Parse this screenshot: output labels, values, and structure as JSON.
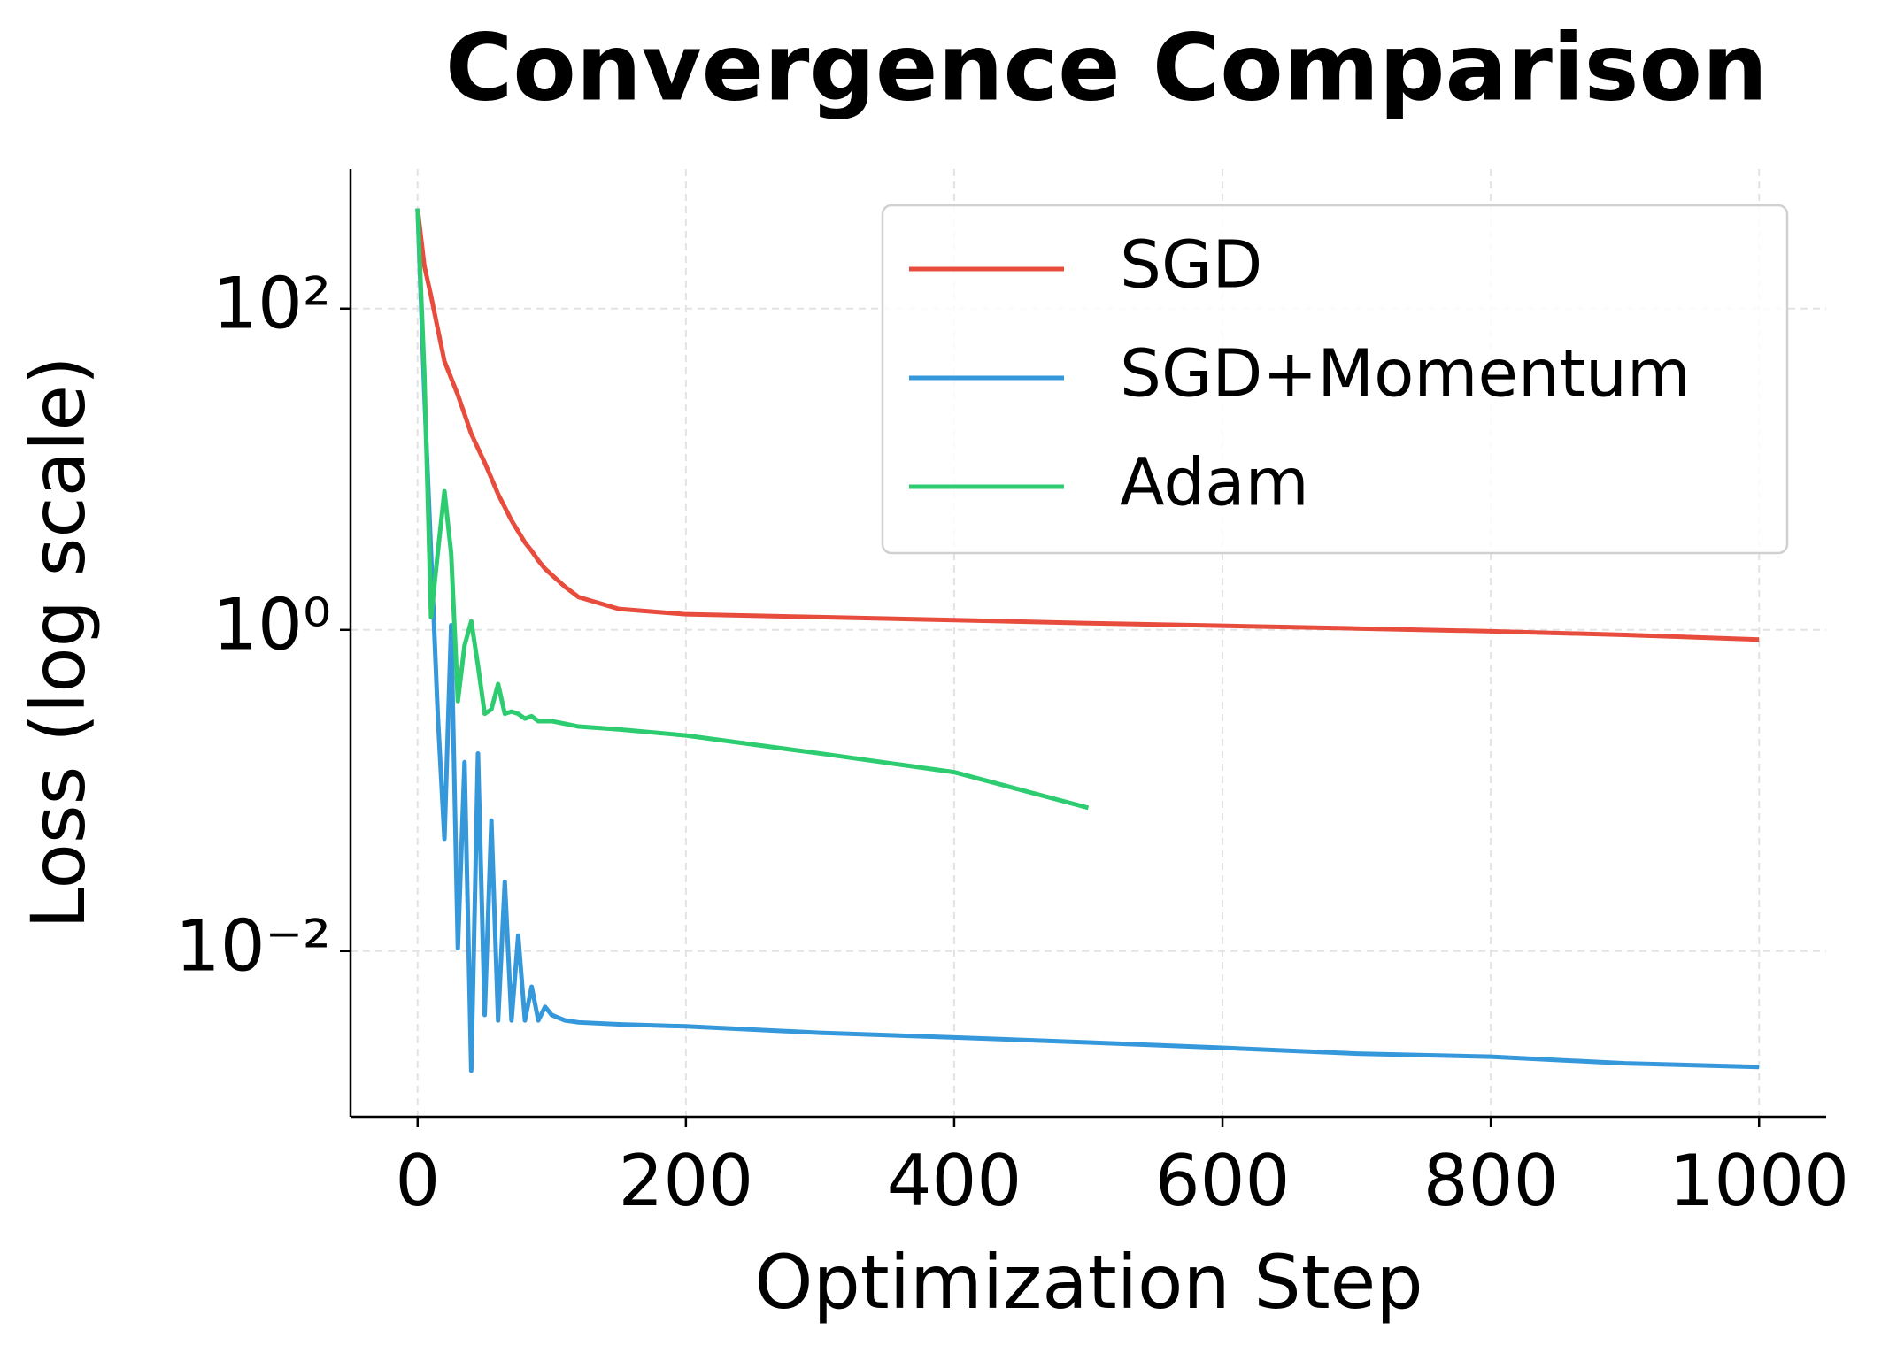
{
  "chart_data": {
    "type": "line",
    "title": "Convergence Comparison",
    "x_label": "Optimization Step",
    "y_label": "Loss (log scale)",
    "x": [
      0,
      5,
      10,
      15,
      20,
      25,
      30,
      35,
      40,
      45,
      50,
      55,
      60,
      65,
      70,
      75,
      80,
      85,
      90,
      95,
      100,
      110,
      120,
      150,
      200,
      300,
      400,
      500,
      600,
      700,
      800,
      900,
      1000
    ],
    "series": [
      {
        "name": "SGD",
        "color": "#e74c3c",
        "values": [
          420,
          185,
          120,
          75,
          47,
          37,
          29,
          22,
          16.6,
          13.5,
          11,
          8.8,
          7,
          5.8,
          4.8,
          4.1,
          3.5,
          3.1,
          2.7,
          2.4,
          2.2,
          1.85,
          1.6,
          1.35,
          1.25,
          1.2,
          1.15,
          1.1,
          1.06,
          1.02,
          0.98,
          0.93,
          0.87
        ]
      },
      {
        "name": "SGD+Momentum",
        "color": "#3498db",
        "values": [
          420,
          30,
          3,
          0.3,
          0.05,
          1.07,
          0.0104,
          0.15,
          0.0018,
          0.17,
          0.004,
          0.065,
          0.0037,
          0.027,
          0.0037,
          0.0125,
          0.0037,
          0.006,
          0.0037,
          0.0045,
          0.004,
          0.0037,
          0.0036,
          0.0035,
          0.0034,
          0.0031,
          0.0029,
          0.0027,
          0.0025,
          0.0023,
          0.0022,
          0.002,
          0.0019
        ]
      },
      {
        "name": "Adam",
        "color": "#2ecc71",
        "values": [
          420,
          40,
          1.2,
          3,
          7.3,
          3,
          0.36,
          0.8,
          1.13,
          0.6,
          0.3,
          0.32,
          0.46,
          0.3,
          0.31,
          0.3,
          0.28,
          0.29,
          0.27,
          0.27,
          0.27,
          0.26,
          0.25,
          0.24,
          0.22,
          0.17,
          0.13,
          0.078,
          null,
          null,
          null,
          null,
          null
        ]
      }
    ],
    "xlim": [
      -50,
      1050
    ],
    "ylim": [
      0.00093,
      740
    ],
    "xticks": [
      0,
      200,
      400,
      600,
      800,
      1000
    ],
    "yticks": [
      {
        "value": 0.01,
        "label": "10⁻²"
      },
      {
        "value": 1,
        "label": "10⁰"
      },
      {
        "value": 100,
        "label": "10²"
      }
    ],
    "y_scale": "log",
    "grid": true,
    "legend_position": "upper right"
  }
}
